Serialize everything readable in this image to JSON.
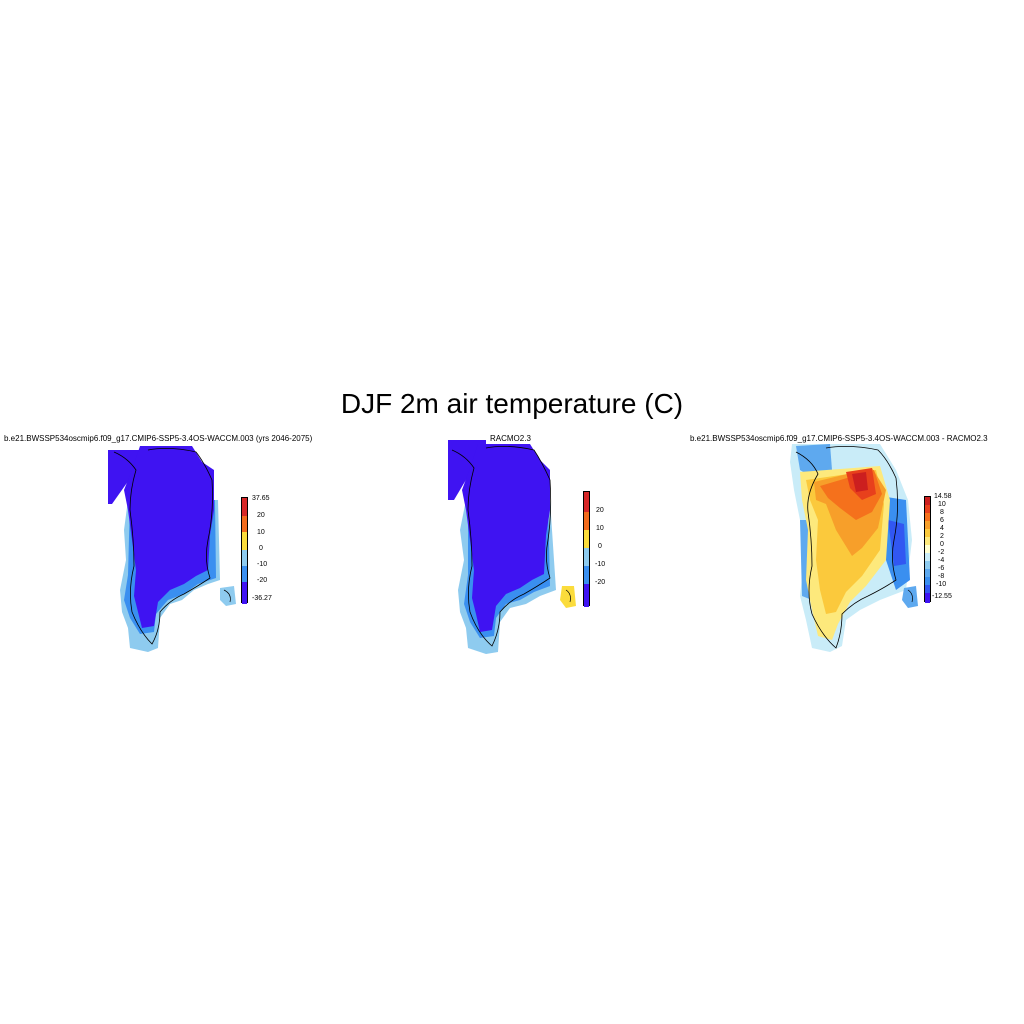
{
  "figure": {
    "title": "DJF 2m air temperature (C)"
  },
  "panels": [
    {
      "title": "b.e21.BWSSP534oscmip6.f09_g17.CMIP6-SSP5-3.4OS-WACCM.003 (yrs 2046-2075)",
      "colorbar": {
        "ticks": [
          "37.65",
          "20",
          "10",
          "0",
          "-10",
          "-20",
          "-36.27"
        ],
        "colors": [
          "#d62728",
          "#f26b1d",
          "#fbdc3c",
          "#8ecbef",
          "#3a8ff0",
          "#3f13f2"
        ]
      }
    },
    {
      "title": "RACMO2.3",
      "colorbar": {
        "ticks": [
          "20",
          "10",
          "0",
          "-10",
          "-20"
        ],
        "colors": [
          "#d62728",
          "#f26b1d",
          "#fbdc3c",
          "#8ecbef",
          "#3a8ff0",
          "#3f13f2"
        ]
      }
    },
    {
      "title": "b.e21.BWSSP534oscmip6.f09_g17.CMIP6-SSP5-3.4OS-WACCM.003 - RACMO2.3",
      "colorbar": {
        "ticks": [
          "14.58",
          "10",
          "8",
          "6",
          "4",
          "2",
          "0",
          "-2",
          "-4",
          "-6",
          "-8",
          "-10",
          "-12.55"
        ],
        "colors": [
          "#cc1f1f",
          "#e8401c",
          "#f5711c",
          "#f79f2a",
          "#fbc93c",
          "#fde97c",
          "#ffffd0",
          "#c9ecf8",
          "#8ecbef",
          "#5ea9ef",
          "#3a8ff0",
          "#3157f2",
          "#3f13f2"
        ]
      }
    }
  ]
}
